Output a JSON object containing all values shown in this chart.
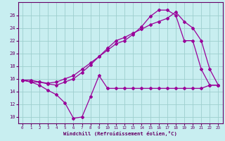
{
  "xlabel": "Windchill (Refroidissement éolien,°C)",
  "bg_color": "#c8eef0",
  "grid_color": "#9ecece",
  "line_color": "#990099",
  "line1_y": [
    15.8,
    15.5,
    15.0,
    14.2,
    13.5,
    12.2,
    9.8,
    10.0,
    13.2,
    16.5,
    14.5,
    14.5,
    14.5,
    14.5,
    14.5,
    14.5,
    14.5,
    14.5,
    14.5,
    14.5,
    14.5,
    14.5,
    15.0,
    15.0
  ],
  "line2_y": [
    15.8,
    15.8,
    15.5,
    15.3,
    15.5,
    16.0,
    16.5,
    17.5,
    18.5,
    19.5,
    20.5,
    21.5,
    22.0,
    23.0,
    24.2,
    25.8,
    26.8,
    26.8,
    26.0,
    22.0,
    22.0,
    17.5,
    15.0,
    15.0
  ],
  "line3_y": [
    15.8,
    15.5,
    15.5,
    15.2,
    15.0,
    15.5,
    16.0,
    17.0,
    18.2,
    19.5,
    20.8,
    22.0,
    22.5,
    23.2,
    23.8,
    24.5,
    25.0,
    25.5,
    26.5,
    25.0,
    24.0,
    22.0,
    17.5,
    15.0
  ],
  "ylim": [
    9,
    28
  ],
  "xlim": [
    -0.5,
    23.5
  ],
  "yticks": [
    10,
    12,
    14,
    16,
    18,
    20,
    22,
    24,
    26
  ],
  "xticks": [
    0,
    1,
    2,
    3,
    4,
    5,
    6,
    7,
    8,
    9,
    10,
    11,
    12,
    13,
    14,
    15,
    16,
    17,
    18,
    19,
    20,
    21,
    22,
    23
  ],
  "figwidth": 3.2,
  "figheight": 2.0,
  "dpi": 100
}
